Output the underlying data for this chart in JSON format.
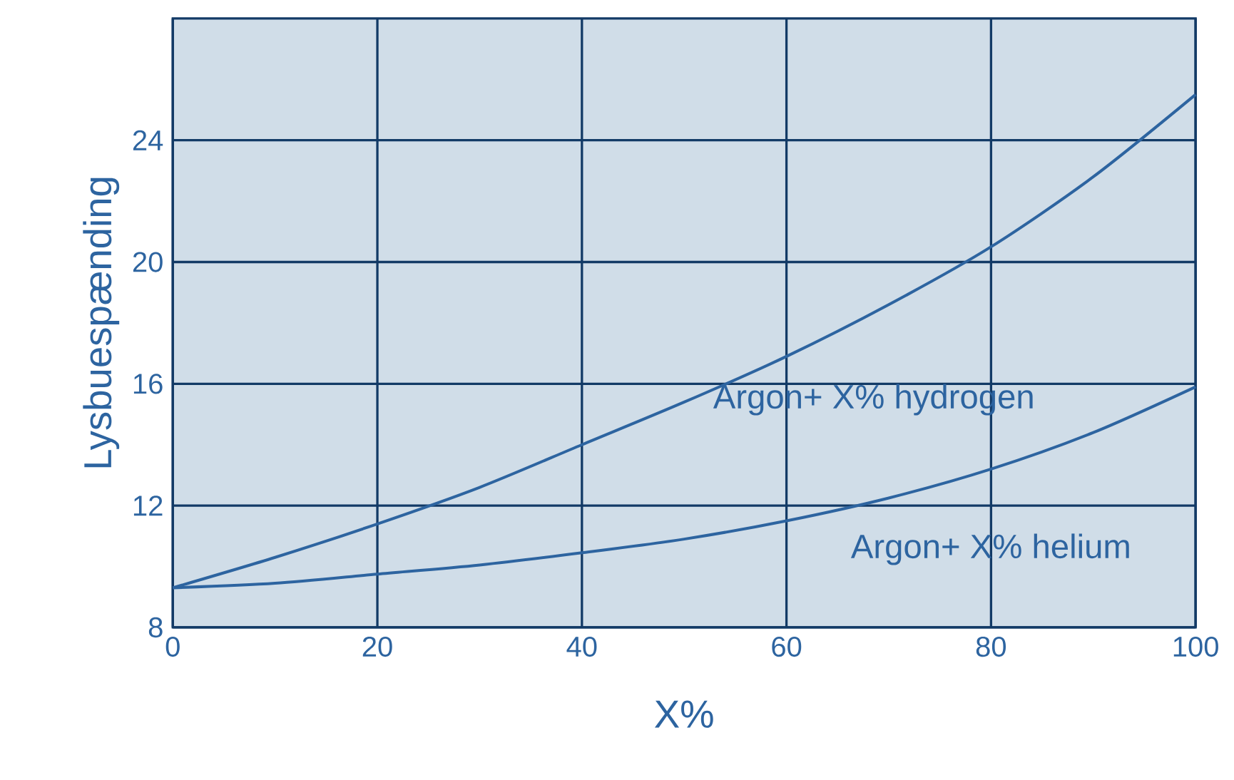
{
  "chart_data": {
    "type": "line",
    "xlabel": "X%",
    "ylabel": "Lysbuespænding",
    "x": [
      0,
      10,
      20,
      30,
      40,
      50,
      60,
      70,
      80,
      90,
      100
    ],
    "series": [
      {
        "name": "Argon+ X% hydrogen",
        "color": "#2d64a0",
        "values": [
          9.3,
          10.3,
          11.4,
          12.6,
          14.0,
          15.4,
          16.9,
          18.6,
          20.5,
          22.8,
          25.5
        ]
      },
      {
        "name": "Argon+ X% helium",
        "color": "#2d64a0",
        "values": [
          9.3,
          9.45,
          9.75,
          10.05,
          10.45,
          10.9,
          11.5,
          12.25,
          13.2,
          14.4,
          15.9
        ]
      }
    ],
    "xlim": [
      0,
      100
    ],
    "ylim": [
      8,
      28
    ],
    "xticks": [
      0,
      20,
      40,
      60,
      80,
      100
    ],
    "yticks": [
      8,
      12,
      16,
      20,
      24
    ],
    "grid": true,
    "marker": "none",
    "line_style": "solid"
  }
}
